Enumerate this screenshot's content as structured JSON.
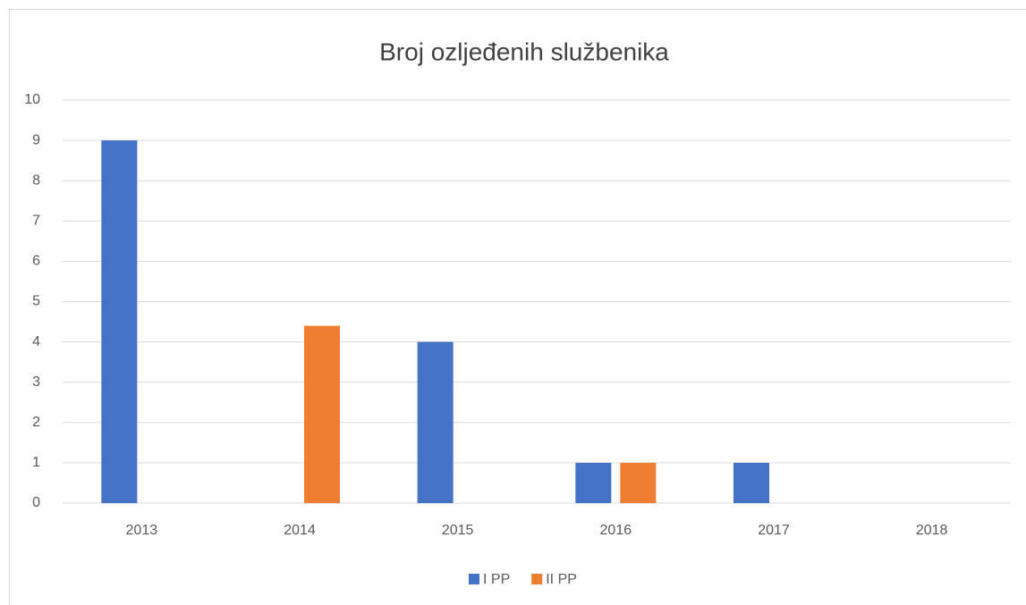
{
  "chart_data": {
    "type": "bar",
    "title": "Broj ozljeđenih službenika",
    "categories": [
      "2013",
      "2014",
      "2015",
      "2016",
      "2017",
      "2018"
    ],
    "series": [
      {
        "name": "I PP",
        "color": "#4472c4",
        "values": [
          9,
          0,
          4,
          1,
          1,
          0
        ]
      },
      {
        "name": "II PP",
        "color": "#ed7d31",
        "values": [
          0,
          4.4,
          0,
          1,
          0,
          0
        ]
      }
    ],
    "ylim": [
      0,
      10
    ],
    "yticks": [
      0,
      1,
      2,
      3,
      4,
      5,
      6,
      7,
      8,
      9,
      10
    ],
    "grid": true,
    "legend": "bottom"
  }
}
